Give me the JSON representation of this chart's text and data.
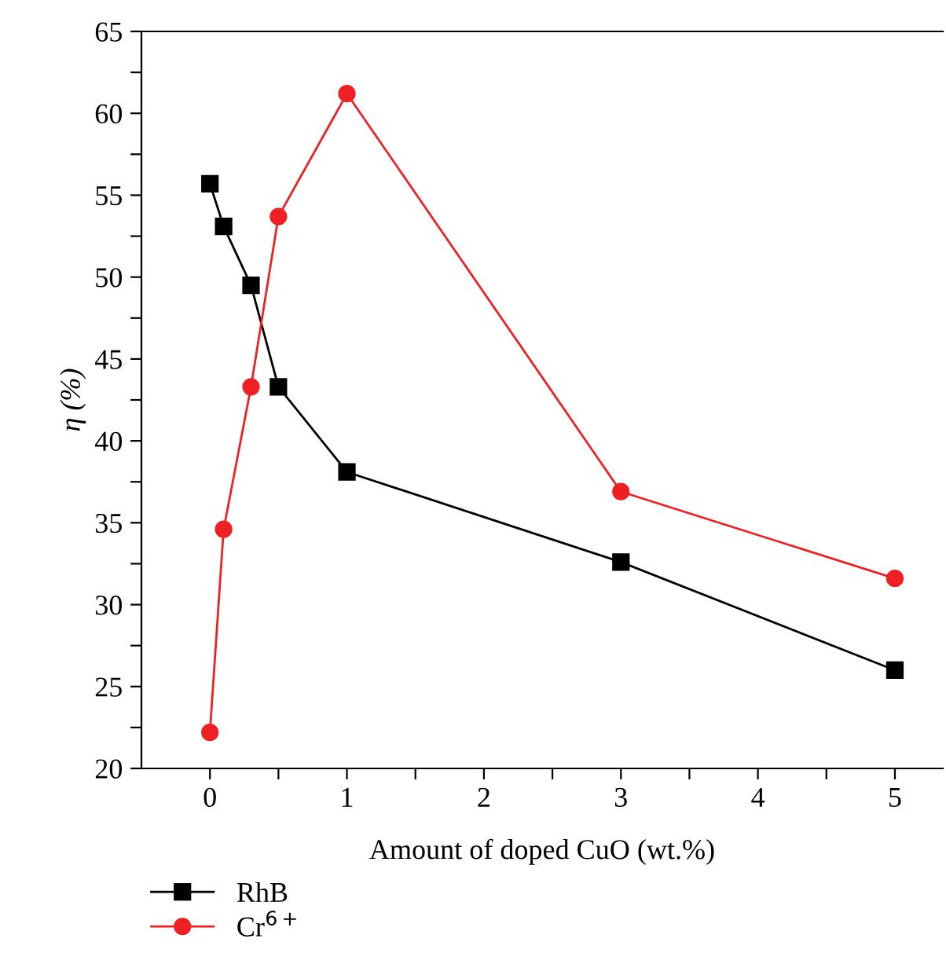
{
  "chart_data": {
    "type": "line",
    "xlabel": "Amount of doped CuO (wt.%)",
    "ylabel": "η (%)",
    "x": [
      0,
      0.1,
      0.3,
      0.5,
      1,
      3,
      5
    ],
    "series": [
      {
        "name": "RhB",
        "color": "#000000",
        "marker": "square",
        "values": [
          55.7,
          53.1,
          49.5,
          43.3,
          38.1,
          32.6,
          26.0
        ]
      },
      {
        "name": "Cr$^{6+}$",
        "color": "#ee2024",
        "marker": "circle",
        "values": [
          22.2,
          34.6,
          43.3,
          53.7,
          61.2,
          36.9,
          31.6
        ]
      }
    ],
    "xlim": [
      -0.5,
      5.35
    ],
    "ylim": [
      20,
      65
    ],
    "xticks": [
      0,
      {
        "value": 0.5,
        "label": null
      },
      1,
      {
        "value": 1.5,
        "label": null
      },
      2,
      {
        "value": 2.5,
        "label": null
      },
      3,
      {
        "value": 3.5,
        "label": null
      },
      4,
      {
        "value": 4.5,
        "label": null
      },
      5
    ],
    "yticks": [
      20,
      {
        "value": 22.5,
        "label": null
      },
      25,
      {
        "value": 27.5,
        "label": null
      },
      30,
      {
        "value": 32.5,
        "label": null
      },
      35,
      {
        "value": 37.5,
        "label": null
      },
      40,
      {
        "value": 42.5,
        "label": null
      },
      45,
      {
        "value": 47.5,
        "label": null
      },
      50,
      {
        "value": 52.5,
        "label": null
      },
      55,
      {
        "value": 57.5,
        "label": null
      },
      60,
      {
        "value": 62.5,
        "label": null
      },
      65
    ],
    "grid": false,
    "legend": "bottom left",
    "line_style": "solid"
  }
}
